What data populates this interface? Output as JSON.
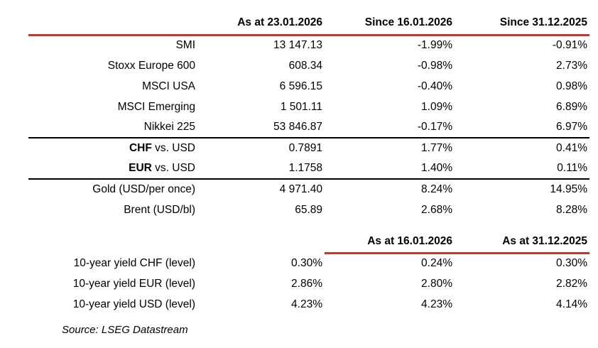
{
  "colors": {
    "background": "#ffffff",
    "text": "#000000",
    "header_rule_red": "#c0392b",
    "section_rule_black": "#000000"
  },
  "market_table": {
    "column_headers": {
      "as_at": "As at 23.01.2026",
      "since_week": "Since 16.01.2026",
      "since_ytd": "Since 31.12.2025"
    },
    "indices": [
      {
        "label": "SMI",
        "as_at": "13 147.13",
        "since_week": "-1.99%",
        "since_ytd": "-0.91%"
      },
      {
        "label": "Stoxx Europe 600",
        "as_at": "608.34",
        "since_week": "-0.98%",
        "since_ytd": "2.73%"
      },
      {
        "label": "MSCI USA",
        "as_at": "6 596.15",
        "since_week": "-0.40%",
        "since_ytd": "0.98%"
      },
      {
        "label": "MSCI Emerging",
        "as_at": "1 501.11",
        "since_week": "1.09%",
        "since_ytd": "6.89%"
      },
      {
        "label": "Nikkei 225",
        "as_at": "53 846.87",
        "since_week": "-0.17%",
        "since_ytd": "6.97%"
      }
    ],
    "currencies": [
      {
        "label_bold": "CHF",
        "label_rest": " vs. USD",
        "as_at": "0.7891",
        "since_week": "1.77%",
        "since_ytd": "0.41%"
      },
      {
        "label_bold": "EUR",
        "label_rest": " vs. USD",
        "as_at": "1.1758",
        "since_week": "1.40%",
        "since_ytd": "0.11%"
      }
    ],
    "commodities": [
      {
        "label": "Gold (USD/per once)",
        "as_at": "4 971.40",
        "since_week": "8.24%",
        "since_ytd": "14.95%"
      },
      {
        "label": "Brent (USD/bl)",
        "as_at": "65.89",
        "since_week": "2.68%",
        "since_ytd": "8.28%"
      }
    ]
  },
  "yield_table": {
    "column_headers": {
      "as_at_week": "As at 16.01.2026",
      "as_at_ytd": "As at 31.12.2025"
    },
    "rows": [
      {
        "label": "10-year yield CHF (level)",
        "current": "0.30%",
        "week": "0.24%",
        "ytd": "0.30%"
      },
      {
        "label": "10-year yield EUR (level)",
        "current": "2.86%",
        "week": "2.80%",
        "ytd": "2.82%"
      },
      {
        "label": "10-year yield USD (level)",
        "current": "4.23%",
        "week": "4.23%",
        "ytd": "4.14%"
      }
    ]
  },
  "source_note": "Source: LSEG Datastream",
  "chart_data": [
    {
      "type": "table",
      "title": "Market levels and performance",
      "columns": [
        "",
        "As at 23.01.2026",
        "Since 16.01.2026",
        "Since 31.12.2025"
      ],
      "rows": [
        [
          "SMI",
          13147.13,
          "-1.99%",
          "-0.91%"
        ],
        [
          "Stoxx Europe 600",
          608.34,
          "-0.98%",
          "2.73%"
        ],
        [
          "MSCI USA",
          6596.15,
          "-0.40%",
          "0.98%"
        ],
        [
          "MSCI Emerging",
          1501.11,
          "1.09%",
          "6.89%"
        ],
        [
          "Nikkei 225",
          53846.87,
          "-0.17%",
          "6.97%"
        ],
        [
          "CHF vs. USD",
          0.7891,
          "1.77%",
          "0.41%"
        ],
        [
          "EUR vs. USD",
          1.1758,
          "1.40%",
          "0.11%"
        ],
        [
          "Gold (USD/per once)",
          4971.4,
          "8.24%",
          "14.95%"
        ],
        [
          "Brent (USD/bl)",
          65.89,
          "2.68%",
          "8.28%"
        ]
      ]
    },
    {
      "type": "table",
      "title": "10-year yields",
      "columns": [
        "",
        "As at 23.01.2026",
        "As at 16.01.2026",
        "As at 31.12.2025"
      ],
      "rows": [
        [
          "10-year yield CHF (level)",
          "0.30%",
          "0.24%",
          "0.30%"
        ],
        [
          "10-year yield EUR (level)",
          "2.86%",
          "2.80%",
          "2.82%"
        ],
        [
          "10-year yield USD (level)",
          "4.23%",
          "4.23%",
          "4.14%"
        ]
      ]
    }
  ]
}
